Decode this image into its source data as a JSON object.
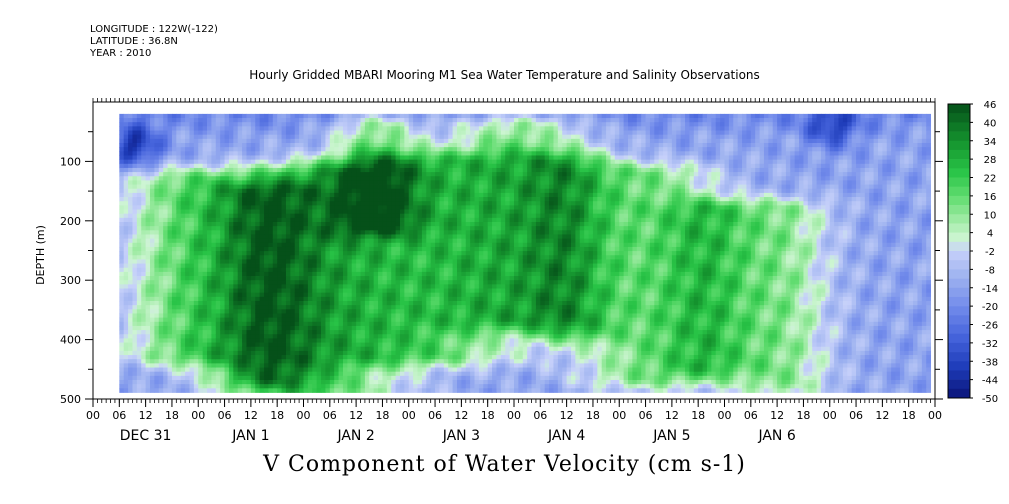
{
  "meta": {
    "longitude": "LONGITUDE : 122W(-122)",
    "latitude": "LATITUDE : 36.8N",
    "year": "YEAR : 2010"
  },
  "chart_data": {
    "type": "heatmap",
    "title": "Hourly Gridded MBARI Mooring M1 Sea Water Temperature and Salinity Observations",
    "xlabel": "V Component of Water Velocity (cm s-1)",
    "ylabel": "DEPTH (m)",
    "ylim": [
      500,
      0
    ],
    "y_ticks": [
      100,
      200,
      300,
      400,
      500
    ],
    "x_tick_hours": [
      "00",
      "06",
      "12",
      "18",
      "00",
      "06",
      "12",
      "18",
      "00",
      "06",
      "12",
      "18",
      "00",
      "06",
      "12",
      "18",
      "00",
      "06",
      "12",
      "18",
      "00",
      "06",
      "12",
      "18",
      "00",
      "06",
      "12",
      "18",
      "00",
      "06",
      "12",
      "18",
      "00"
    ],
    "day_labels": [
      "DEC 31",
      "JAN  1",
      "JAN  2",
      "JAN  3",
      "JAN  4",
      "JAN  5",
      "JAN  6"
    ],
    "data_start_hour": 6,
    "colorbar": {
      "labels": [
        "46",
        "40",
        "34",
        "28",
        "22",
        "16",
        "10",
        "4",
        "-2",
        "-8",
        "-14",
        "-20",
        "-26",
        "-32",
        "-38",
        "-44",
        "-50"
      ],
      "min": -50,
      "max": 46,
      "step": 3
    },
    "features": {
      "positive_bands": [
        {
          "hour": 20,
          "width": 14,
          "top": 130,
          "bottom": 420,
          "v": 10
        },
        {
          "hour": 38,
          "width": 12,
          "top": 150,
          "bottom": 460,
          "v": 14
        },
        {
          "hour": 50,
          "width": 20,
          "top": 120,
          "bottom": 480,
          "v": 16
        },
        {
          "hour": 64,
          "width": 10,
          "top": 40,
          "bottom": 200,
          "v": 10
        },
        {
          "hour": 76,
          "width": 22,
          "top": 100,
          "bottom": 420,
          "v": 12
        },
        {
          "hour": 96,
          "width": 16,
          "top": 40,
          "bottom": 360,
          "v": 10
        },
        {
          "hour": 108,
          "width": 10,
          "top": 100,
          "bottom": 380,
          "v": 8
        },
        {
          "hour": 126,
          "width": 16,
          "top": 120,
          "bottom": 460,
          "v": 10
        },
        {
          "hour": 140,
          "width": 10,
          "top": 180,
          "bottom": 440,
          "v": 8
        },
        {
          "hour": 156,
          "width": 12,
          "top": 180,
          "bottom": 470,
          "v": 8
        }
      ],
      "negative_patches": [
        {
          "hour": 9,
          "depth": 70,
          "v": -38
        },
        {
          "hour": 168,
          "depth": 40,
          "v": -32
        }
      ]
    }
  }
}
